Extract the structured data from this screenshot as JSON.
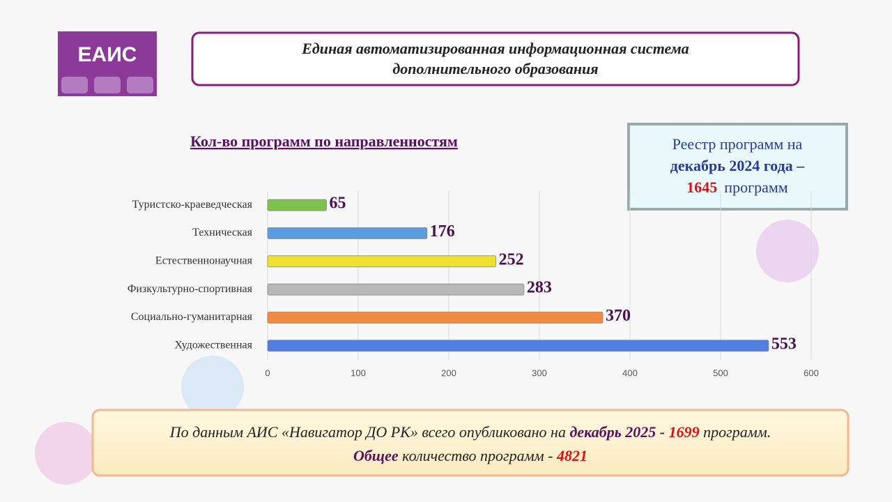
{
  "logo": "ЕАИС",
  "header": {
    "line1": "Единая автоматизированная информационная система",
    "line2": "дополнительного образования"
  },
  "registry": {
    "line1": "Реестр программ на",
    "line2": "декабрь 2024 года –",
    "count": "1645",
    "unit": "программ"
  },
  "footer": {
    "part1": "По данным АИС «Навигатор ДО РК» всего опубликовано на ",
    "bold1": "декабрь 2025 - ",
    "count1": "1699",
    "part2": " программ.",
    "bold2": "Общее",
    "part3": " количество программ - ",
    "count2": "4821"
  },
  "chart_data": {
    "type": "hbar",
    "title": "Кол-во программ по направленностям",
    "categories": [
      "Туристско-краеведческая",
      "Техническая",
      "Естественнонаучная",
      "Физкультурно-спортивная",
      "Социально-гуманитарная",
      "Художественная"
    ],
    "values": [
      65,
      176,
      252,
      283,
      370,
      553
    ],
    "colors": [
      "#7dc24a",
      "#5b9be0",
      "#f2e030",
      "#b8b8b8",
      "#f08a40",
      "#4f7fe0"
    ],
    "xlim": [
      0,
      600
    ],
    "xticks": [
      0,
      100,
      200,
      300,
      400,
      500,
      600
    ],
    "grid": true
  }
}
